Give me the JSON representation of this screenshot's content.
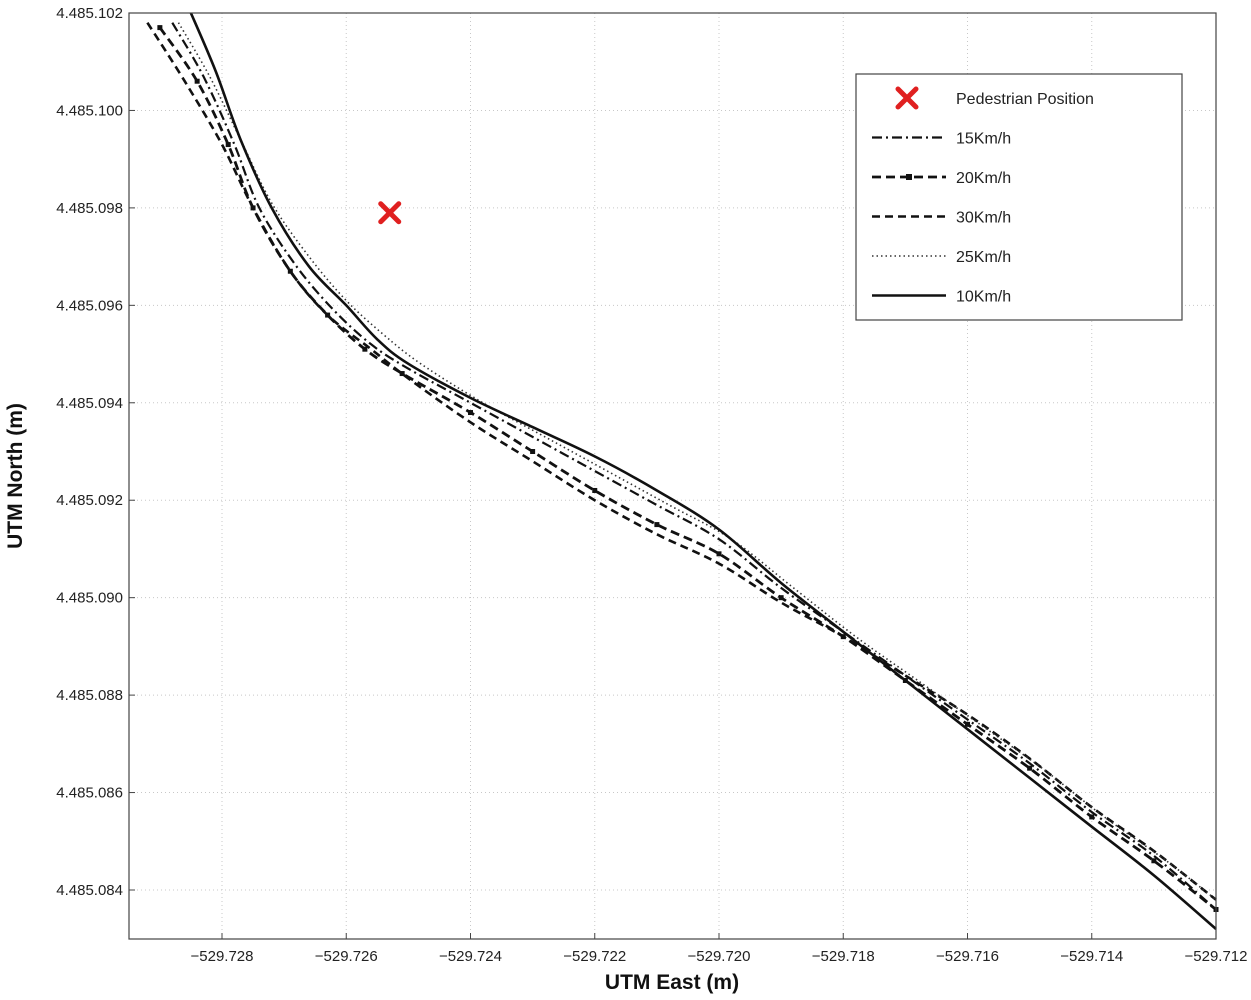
{
  "chart_data": {
    "type": "line",
    "xlabel": "UTM East (m)",
    "ylabel": "UTM North (m)",
    "xlim": [
      -529.7293,
      -529.712
    ],
    "ylim": [
      4485.083,
      4485.102
    ],
    "grid": true,
    "legend_position": "top-right",
    "x_ticks": [
      -529.728,
      -529.726,
      -529.724,
      -529.722,
      -529.72,
      -529.718,
      -529.716,
      -529.714,
      -529.712
    ],
    "x_tick_labels": [
      "−529.728",
      "−529.726",
      "−529.724",
      "−529.722",
      "−529.720",
      "−529.718",
      "−529.716",
      "−529.714",
      "−529.712"
    ],
    "y_ticks": [
      4485.084,
      4485.086,
      4485.088,
      4485.09,
      4485.092,
      4485.094,
      4485.096,
      4485.098,
      4485.1,
      4485.102
    ],
    "y_tick_labels": [
      "4.485.084",
      "4.485.086",
      "4.485.088",
      "4.485.090",
      "4.485.092",
      "4.485.094",
      "4.485.096",
      "4.485.098",
      "4.485.100",
      "4.485.102"
    ],
    "pedestrian": {
      "name": "Pedestrian Position",
      "x": -529.7253,
      "y": 4485.0979,
      "color": "#e02020"
    },
    "series": [
      {
        "name": "15Km/h",
        "style": "dashdot",
        "x": [
          -529.7288,
          -529.7283,
          -529.7278,
          -529.7274,
          -529.7268,
          -529.7262,
          -529.7256,
          -529.725,
          -529.724,
          -529.723,
          -529.722,
          -529.721,
          -529.72,
          -529.719,
          -529.718,
          -529.717,
          -529.716,
          -529.715,
          -529.714,
          -529.713,
          -529.712
        ],
        "y": [
          4485.1018,
          4485.1007,
          4485.0993,
          4485.098,
          4485.0968,
          4485.0959,
          4485.0952,
          4485.0947,
          4485.094,
          4485.0933,
          4485.0926,
          4485.0919,
          4485.0912,
          4485.0902,
          4485.0893,
          4485.0884,
          4485.0875,
          4485.0866,
          4485.0856,
          4485.0847,
          4485.0836
        ]
      },
      {
        "name": "20Km/h",
        "style": "dash-marker",
        "x": [
          -529.729,
          -529.7284,
          -529.7279,
          -529.7275,
          -529.7269,
          -529.7263,
          -529.7257,
          -529.7251,
          -529.724,
          -529.723,
          -529.722,
          -529.721,
          -529.72,
          -529.719,
          -529.718,
          -529.717,
          -529.716,
          -529.715,
          -529.714,
          -529.713,
          -529.712
        ],
        "y": [
          4485.1017,
          4485.1006,
          4485.0993,
          4485.098,
          4485.0967,
          4485.0958,
          4485.0951,
          4485.0946,
          4485.0938,
          4485.093,
          4485.0922,
          4485.0915,
          4485.0909,
          4485.09,
          4485.0892,
          4485.0883,
          4485.0874,
          4485.0865,
          4485.0855,
          4485.0846,
          4485.0836
        ]
      },
      {
        "name": "30Km/h",
        "style": "dashed",
        "x": [
          -529.7292,
          -529.7286,
          -529.728,
          -529.7275,
          -529.7269,
          -529.7263,
          -529.7256,
          -529.725,
          -529.724,
          -529.723,
          -529.722,
          -529.721,
          -529.72,
          -529.719,
          -529.718,
          -529.717,
          -529.716,
          -529.715,
          -529.714,
          -529.713,
          -529.712
        ],
        "y": [
          4485.1018,
          4485.1006,
          4485.0993,
          4485.098,
          4485.0967,
          4485.0958,
          4485.0951,
          4485.0945,
          4485.0936,
          4485.0928,
          4485.092,
          4485.0913,
          4485.0907,
          4485.0899,
          4485.0892,
          4485.0884,
          4485.0876,
          4485.0867,
          4485.0857,
          4485.0848,
          4485.0838
        ]
      },
      {
        "name": "25Km/h",
        "style": "dotted",
        "x": [
          -529.7287,
          -529.7282,
          -529.7277,
          -529.7272,
          -529.7266,
          -529.726,
          -529.7254,
          -529.7248,
          -529.7238,
          -529.7228,
          -529.7218,
          -529.7208,
          -529.7198,
          -529.7188,
          -529.7178,
          -529.7168,
          -529.7158,
          -529.7148,
          -529.7138,
          -529.7128,
          -529.712
        ],
        "y": [
          4485.1018,
          4485.1007,
          4485.0994,
          4485.0981,
          4485.097,
          4485.0961,
          4485.0954,
          4485.0948,
          4485.094,
          4485.0933,
          4485.0926,
          4485.0919,
          4485.0912,
          4485.0902,
          4485.0892,
          4485.0883,
          4485.0874,
          4485.0865,
          4485.0855,
          4485.0846,
          4485.0838
        ]
      },
      {
        "name": "10Km/h",
        "style": "solid",
        "x": [
          -529.7285,
          -529.7281,
          -529.7277,
          -529.7272,
          -529.7266,
          -529.726,
          -529.7255,
          -529.725,
          -529.724,
          -529.723,
          -529.722,
          -529.721,
          -529.72,
          -529.719,
          -529.718,
          -529.717,
          -529.716,
          -529.715,
          -529.714,
          -529.713,
          -529.712
        ],
        "y": [
          4485.102,
          4485.1008,
          4485.0994,
          4485.098,
          4485.0968,
          4485.096,
          4485.0953,
          4485.0948,
          4485.0941,
          4485.0935,
          4485.0929,
          4485.0922,
          4485.0914,
          4485.0903,
          4485.0893,
          4485.0883,
          4485.0873,
          4485.0863,
          4485.0853,
          4485.0843,
          4485.0832
        ]
      }
    ]
  }
}
